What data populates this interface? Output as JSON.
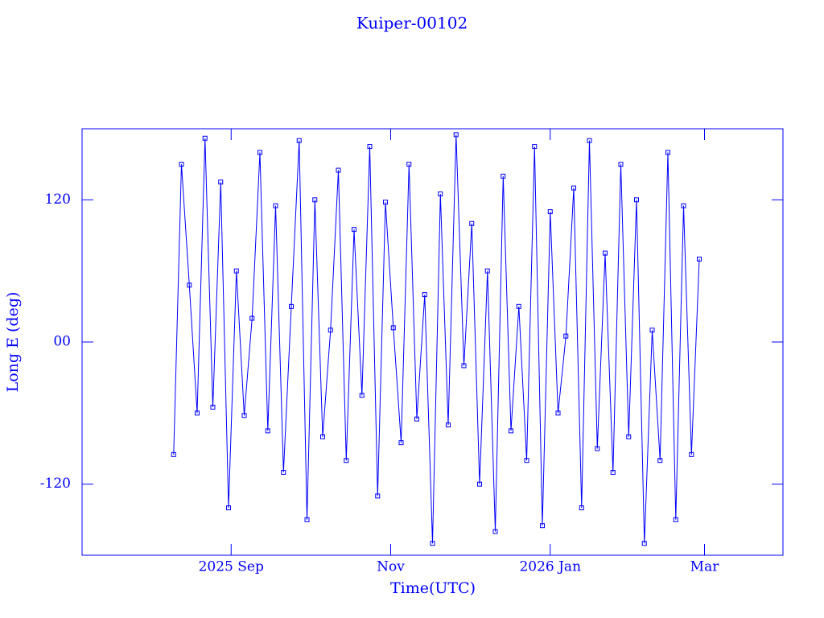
{
  "chart_data": {
    "type": "line",
    "title": "Kuiper-00102",
    "xlabel": "Time(UTC)",
    "ylabel": "Long E (deg)",
    "x": [
      "2025-08-10",
      "2025-08-13",
      "2025-08-16",
      "2025-08-19",
      "2025-08-22",
      "2025-08-25",
      "2025-08-28",
      "2025-08-31",
      "2025-09-03",
      "2025-09-06",
      "2025-09-09",
      "2025-09-12",
      "2025-09-15",
      "2025-09-18",
      "2025-09-21",
      "2025-09-24",
      "2025-09-27",
      "2025-09-30",
      "2025-10-03",
      "2025-10-06",
      "2025-10-09",
      "2025-10-12",
      "2025-10-15",
      "2025-10-18",
      "2025-10-21",
      "2025-10-24",
      "2025-10-27",
      "2025-10-30",
      "2025-11-02",
      "2025-11-05",
      "2025-11-08",
      "2025-11-11",
      "2025-11-14",
      "2025-11-17",
      "2025-11-20",
      "2025-11-23",
      "2025-11-26",
      "2025-11-29",
      "2025-12-02",
      "2025-12-05",
      "2025-12-08",
      "2025-12-11",
      "2025-12-14",
      "2025-12-17",
      "2025-12-20",
      "2025-12-23",
      "2025-12-26",
      "2025-12-29",
      "2026-01-01",
      "2026-01-04",
      "2026-01-07",
      "2026-01-10",
      "2026-01-13",
      "2026-01-16",
      "2026-01-19",
      "2026-01-22",
      "2026-01-25",
      "2026-01-28",
      "2026-01-31",
      "2026-02-03",
      "2026-02-06",
      "2026-02-09",
      "2026-02-12",
      "2026-02-15",
      "2026-02-18",
      "2026-02-21",
      "2026-02-24",
      "2026-02-27"
    ],
    "series": [
      {
        "color": "#0000ff",
        "values": [
          -95,
          150,
          48,
          -60,
          172,
          -55,
          135,
          -140,
          60,
          -62,
          20,
          160,
          -75,
          115,
          -110,
          30,
          170,
          -150,
          120,
          -80,
          10,
          145,
          -100,
          95,
          -45,
          165,
          -130,
          118,
          12,
          -85,
          150,
          -65,
          40,
          -170,
          125,
          -70,
          175,
          -20,
          100,
          -120,
          60,
          -160,
          140,
          -75,
          30,
          -100,
          165,
          -155,
          110,
          -60,
          5,
          130,
          -140,
          170,
          -90,
          75,
          -110,
          150,
          -80,
          120,
          -170,
          10,
          -100,
          160,
          -150,
          115,
          -95,
          70
        ]
      }
    ],
    "xlim": [
      "2025-07-06",
      "2026-03-31"
    ],
    "xticks": [
      {
        "value": "2025-09-01",
        "label": "2025 Sep"
      },
      {
        "value": "2025-11-01",
        "label": "Nov"
      },
      {
        "value": "2026-01-01",
        "label": "2026 Jan"
      },
      {
        "value": "2026-03-01",
        "label": "Mar"
      }
    ],
    "ylim": [
      -180,
      180
    ],
    "yticks": [
      {
        "value": -120,
        "label": "-120"
      },
      {
        "value": 0,
        "label": "00"
      },
      {
        "value": 120,
        "label": "120"
      }
    ]
  }
}
